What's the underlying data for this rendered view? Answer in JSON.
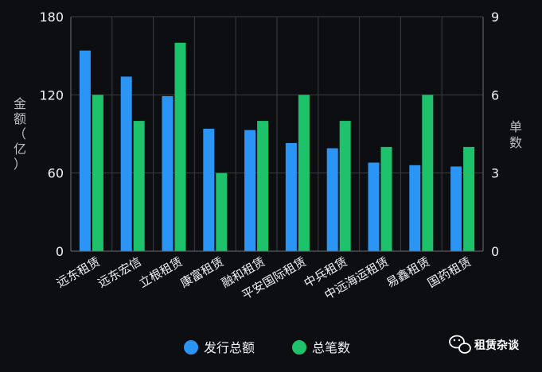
{
  "chart_data": {
    "type": "bar",
    "categories": [
      "远东租赁",
      "远东宏信",
      "立根租赁",
      "康富租赁",
      "融和租赁",
      "平安国际租赁",
      "中兵租赁",
      "中远海运租赁",
      "易鑫租赁",
      "国药租赁"
    ],
    "series": [
      {
        "name": "发行总额",
        "axis": "left",
        "color": "#2b95f6",
        "values": [
          154,
          134,
          119,
          94,
          93,
          83,
          79,
          68,
          66,
          65
        ]
      },
      {
        "name": "总笔数",
        "axis": "right",
        "color": "#1ec26b",
        "values": [
          6,
          5,
          8,
          3,
          5,
          6,
          5,
          4,
          6,
          4
        ]
      }
    ],
    "y_left": {
      "label": "金额（亿）",
      "label_chars": [
        "金",
        "额",
        "（",
        "亿",
        "）"
      ],
      "min": 0,
      "max": 180,
      "ticks": [
        0,
        60,
        120,
        180
      ]
    },
    "y_right": {
      "label": "单数",
      "label_chars": [
        "单",
        "数"
      ],
      "min": 0,
      "max": 9,
      "ticks": [
        0,
        3,
        6,
        9
      ]
    },
    "grid": true,
    "legend_position": "bottom-center"
  },
  "watermark": {
    "icon": "wechat-icon",
    "text": "租赁杂谈"
  }
}
